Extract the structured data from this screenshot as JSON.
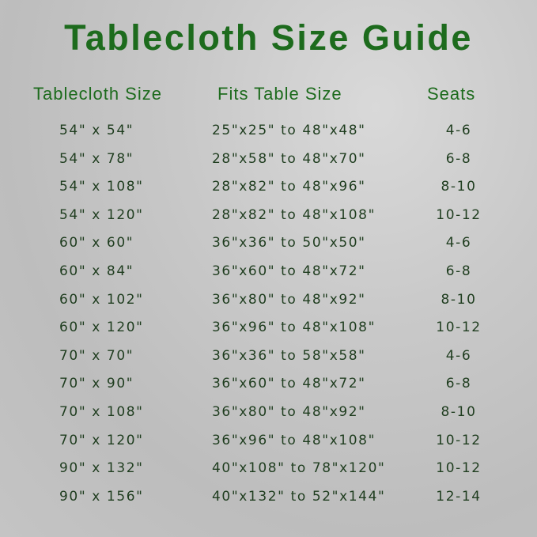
{
  "title": "Tablecloth Size Guide",
  "headers": {
    "size": "Tablecloth Size",
    "fits": "Fits Table Size",
    "seats": "Seats"
  },
  "rows": [
    {
      "size": "54\" x 54\"",
      "fits": "25\"x25\" to 48\"x48\"",
      "seats": "4-6"
    },
    {
      "size": "54\" x 78\"",
      "fits": "28\"x58\" to 48\"x70\"",
      "seats": "6-8"
    },
    {
      "size": "54\" x 108\"",
      "fits": "28\"x82\" to 48\"x96\"",
      "seats": "8-10"
    },
    {
      "size": "54\" x 120\"",
      "fits": "28\"x82\" to 48\"x108\"",
      "seats": "10-12"
    },
    {
      "size": "60\" x 60\"",
      "fits": "36\"x36\" to 50\"x50\"",
      "seats": "4-6"
    },
    {
      "size": "60\" x 84\"",
      "fits": "36\"x60\" to 48\"x72\"",
      "seats": "6-8"
    },
    {
      "size": "60\" x 102\"",
      "fits": "36\"x80\" to 48\"x92\"",
      "seats": "8-10"
    },
    {
      "size": "60\" x 120\"",
      "fits": "36\"x96\" to 48\"x108\"",
      "seats": "10-12"
    },
    {
      "size": "70\" x 70\"",
      "fits": "36\"x36\" to 58\"x58\"",
      "seats": "4-6"
    },
    {
      "size": "70\" x 90\"",
      "fits": "36\"x60\" to 48\"x72\"",
      "seats": "6-8"
    },
    {
      "size": "70\" x 108\"",
      "fits": "36\"x80\" to 48\"x92\"",
      "seats": "8-10"
    },
    {
      "size": "70\" x 120\"",
      "fits": "36\"x96\" to 48\"x108\"",
      "seats": "10-12"
    },
    {
      "size": "90\" x 132\"",
      "fits": "40\"x108\" to 78\"x120\"",
      "seats": "10-12"
    },
    {
      "size": "90\" x 156\"",
      "fits": "40\"x132\" to 52\"x144\"",
      "seats": "12-14"
    }
  ]
}
